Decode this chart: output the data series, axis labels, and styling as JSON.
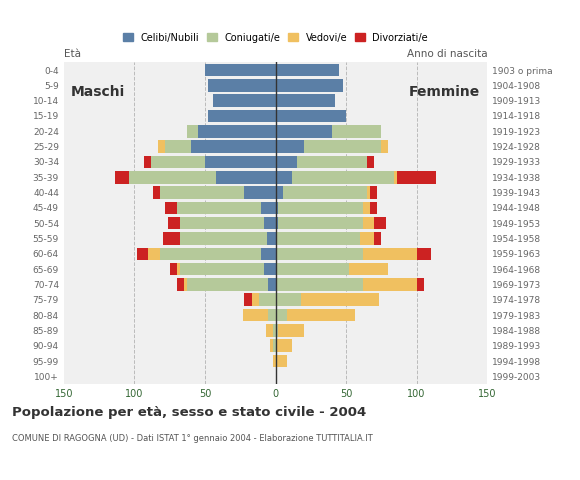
{
  "age_groups": [
    "100+",
    "95-99",
    "90-94",
    "85-89",
    "80-84",
    "75-79",
    "70-74",
    "65-69",
    "60-64",
    "55-59",
    "50-54",
    "45-49",
    "40-44",
    "35-39",
    "30-34",
    "25-29",
    "20-24",
    "15-19",
    "10-14",
    "5-9",
    "0-4"
  ],
  "birth_years": [
    "1903 o prima",
    "1904-1908",
    "1909-1913",
    "1914-1918",
    "1919-1923",
    "1924-1928",
    "1929-1933",
    "1934-1938",
    "1939-1943",
    "1944-1948",
    "1949-1953",
    "1954-1958",
    "1959-1963",
    "1964-1968",
    "1969-1973",
    "1974-1978",
    "1979-1983",
    "1984-1988",
    "1989-1993",
    "1994-1998",
    "1999-2003"
  ],
  "males": {
    "celibi": [
      0,
      0,
      0,
      0,
      0,
      0,
      5,
      8,
      10,
      6,
      8,
      10,
      22,
      42,
      50,
      60,
      55,
      48,
      44,
      48,
      50
    ],
    "coniugati": [
      0,
      0,
      2,
      2,
      5,
      12,
      58,
      60,
      72,
      62,
      60,
      60,
      60,
      62,
      38,
      18,
      8,
      0,
      0,
      0,
      0
    ],
    "vedovi": [
      0,
      2,
      2,
      5,
      18,
      5,
      2,
      2,
      8,
      0,
      0,
      0,
      0,
      0,
      0,
      5,
      0,
      0,
      0,
      0,
      0
    ],
    "divorziati": [
      0,
      0,
      0,
      0,
      0,
      5,
      5,
      5,
      8,
      12,
      8,
      8,
      5,
      10,
      5,
      0,
      0,
      0,
      0,
      0,
      0
    ]
  },
  "females": {
    "nubili": [
      0,
      0,
      0,
      0,
      0,
      0,
      0,
      0,
      0,
      0,
      2,
      2,
      5,
      12,
      15,
      20,
      40,
      50,
      42,
      48,
      45
    ],
    "coniugate": [
      0,
      0,
      0,
      2,
      8,
      18,
      62,
      52,
      62,
      60,
      60,
      60,
      60,
      72,
      50,
      55,
      35,
      0,
      0,
      0,
      0
    ],
    "vedove": [
      0,
      8,
      12,
      18,
      48,
      55,
      38,
      28,
      38,
      10,
      8,
      5,
      2,
      2,
      0,
      5,
      0,
      0,
      0,
      0,
      0
    ],
    "divorziate": [
      0,
      0,
      0,
      0,
      0,
      0,
      5,
      0,
      10,
      5,
      8,
      5,
      5,
      28,
      5,
      0,
      0,
      0,
      0,
      0,
      0
    ]
  },
  "colors": {
    "celibi_nubili": "#5b7fa6",
    "coniugati_e": "#b5c99a",
    "vedovi_e": "#f0c060",
    "divorziati_e": "#cc2222"
  },
  "title": "Popolazione per età, sesso e stato civile - 2004",
  "subtitle": "COMUNE DI RAGOGNA (UD) - Dati ISTAT 1° gennaio 2004 - Elaborazione TUTTITALIA.IT",
  "xlim": 150,
  "ylabel_maschi": "Maschi",
  "ylabel_femmine": "Femmine",
  "eta_label": "Età",
  "anno_label": "Anno di nascita",
  "legend_labels": [
    "Celibi/Nubili",
    "Coniugati/e",
    "Vedovi/e",
    "Divorziati/e"
  ],
  "background_color": "#ffffff",
  "plot_bg_color": "#f0f0f0"
}
